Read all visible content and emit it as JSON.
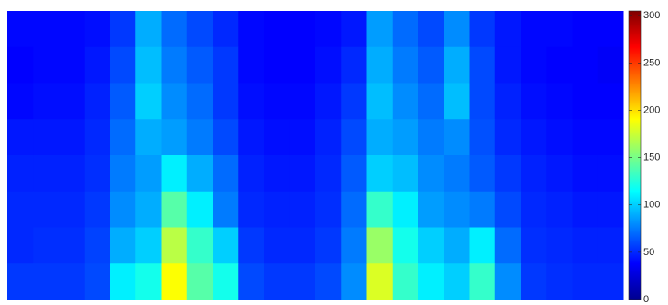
{
  "chart_data": {
    "type": "heatmap",
    "colormap": "jet",
    "clim": [
      0,
      305
    ],
    "cticks": [
      0,
      50,
      100,
      150,
      200,
      250,
      300
    ],
    "values": [
      [
        40,
        40,
        40,
        42,
        55,
        90,
        70,
        60,
        50,
        40,
        38,
        38,
        40,
        45,
        85,
        70,
        60,
        80,
        55,
        45,
        40,
        40,
        38,
        38
      ],
      [
        38,
        40,
        40,
        45,
        60,
        95,
        75,
        65,
        55,
        40,
        38,
        38,
        42,
        50,
        90,
        75,
        65,
        90,
        60,
        45,
        40,
        38,
        38,
        36
      ],
      [
        40,
        42,
        42,
        48,
        65,
        100,
        80,
        70,
        55,
        42,
        40,
        40,
        45,
        55,
        95,
        80,
        70,
        95,
        60,
        48,
        42,
        40,
        38,
        38
      ],
      [
        45,
        45,
        45,
        50,
        70,
        90,
        85,
        75,
        60,
        45,
        42,
        42,
        48,
        60,
        90,
        85,
        75,
        80,
        62,
        50,
        45,
        42,
        40,
        40
      ],
      [
        48,
        48,
        48,
        52,
        75,
        85,
        110,
        90,
        70,
        48,
        45,
        45,
        50,
        65,
        100,
        95,
        80,
        75,
        65,
        55,
        48,
        45,
        42,
        42
      ],
      [
        50,
        50,
        50,
        55,
        80,
        90,
        140,
        110,
        75,
        50,
        48,
        48,
        52,
        70,
        130,
        110,
        85,
        80,
        75,
        60,
        50,
        48,
        45,
        45
      ],
      [
        50,
        52,
        52,
        58,
        90,
        100,
        170,
        130,
        100,
        55,
        50,
        50,
        55,
        75,
        160,
        120,
        100,
        90,
        110,
        70,
        52,
        50,
        48,
        48
      ],
      [
        55,
        55,
        55,
        60,
        110,
        120,
        190,
        140,
        120,
        60,
        55,
        55,
        60,
        80,
        180,
        130,
        110,
        100,
        130,
        80,
        55,
        52,
        50,
        50
      ]
    ]
  }
}
